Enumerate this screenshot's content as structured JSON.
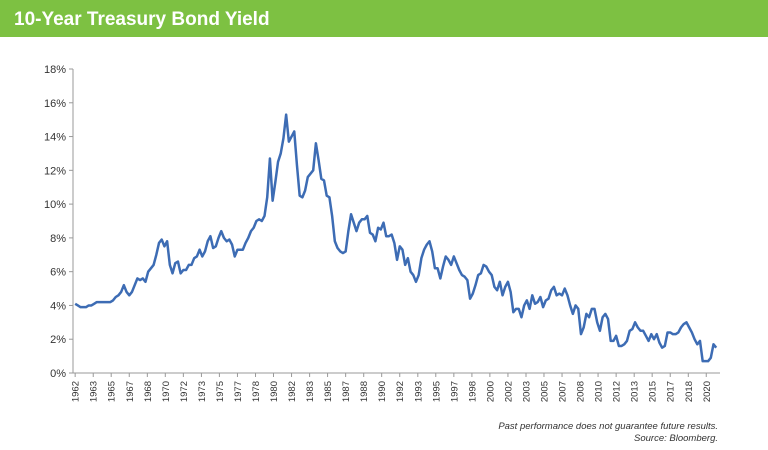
{
  "chart_data": {
    "type": "line",
    "title": "10-Year Treasury Bond Yield",
    "footnotes": [
      "Past performance does not guarantee future results.",
      "Source: Bloomberg."
    ],
    "x": [
      1962,
      1962.25,
      1962.5,
      1962.75,
      1963,
      1963.25,
      1963.5,
      1963.75,
      1964,
      1964.25,
      1964.5,
      1964.75,
      1965,
      1965.25,
      1965.5,
      1965.75,
      1966,
      1966.25,
      1966.5,
      1966.75,
      1967,
      1967.25,
      1967.5,
      1967.75,
      1968,
      1968.25,
      1968.5,
      1968.75,
      1969,
      1969.25,
      1969.5,
      1969.75,
      1970,
      1970.25,
      1970.5,
      1970.75,
      1971,
      1971.25,
      1971.5,
      1971.75,
      1972,
      1972.25,
      1972.5,
      1972.75,
      1973,
      1973.25,
      1973.5,
      1973.75,
      1974,
      1974.25,
      1974.5,
      1974.75,
      1975,
      1975.25,
      1975.5,
      1975.75,
      1976,
      1976.25,
      1976.5,
      1976.75,
      1977,
      1977.25,
      1977.5,
      1977.75,
      1978,
      1978.25,
      1978.5,
      1978.75,
      1979,
      1979.25,
      1979.5,
      1979.75,
      1980,
      1980.25,
      1980.5,
      1980.75,
      1981,
      1981.25,
      1981.5,
      1981.75,
      1982,
      1982.25,
      1982.5,
      1982.75,
      1983,
      1983.25,
      1983.5,
      1983.75,
      1984,
      1984.25,
      1984.5,
      1984.75,
      1985,
      1985.25,
      1985.5,
      1985.75,
      1986,
      1986.25,
      1986.5,
      1986.75,
      1987,
      1987.25,
      1987.5,
      1987.75,
      1988,
      1988.25,
      1988.5,
      1988.75,
      1989,
      1989.25,
      1989.5,
      1989.75,
      1990,
      1990.25,
      1990.5,
      1990.75,
      1991,
      1991.25,
      1991.5,
      1991.75,
      1992,
      1992.25,
      1992.5,
      1992.75,
      1993,
      1993.25,
      1993.5,
      1993.75,
      1994,
      1994.25,
      1994.5,
      1994.75,
      1995,
      1995.25,
      1995.5,
      1995.75,
      1996,
      1996.25,
      1996.5,
      1996.75,
      1997,
      1997.25,
      1997.5,
      1997.75,
      1998,
      1998.25,
      1998.5,
      1998.75,
      1999,
      1999.25,
      1999.5,
      1999.75,
      2000,
      2000.25,
      2000.5,
      2000.75,
      2001,
      2001.25,
      2001.5,
      2001.75,
      2002,
      2002.25,
      2002.5,
      2002.75,
      2003,
      2003.25,
      2003.5,
      2003.75,
      2004,
      2004.25,
      2004.5,
      2004.75,
      2005,
      2005.25,
      2005.5,
      2005.75,
      2006,
      2006.25,
      2006.5,
      2006.75,
      2007,
      2007.25,
      2007.5,
      2007.75,
      2008,
      2008.25,
      2008.5,
      2008.75,
      2009,
      2009.25,
      2009.5,
      2009.75,
      2010,
      2010.25,
      2010.5,
      2010.75,
      2011,
      2011.25,
      2011.5,
      2011.75,
      2012,
      2012.25,
      2012.5,
      2012.75,
      2013,
      2013.25,
      2013.5,
      2013.75,
      2014,
      2014.25,
      2014.5,
      2014.75,
      2015,
      2015.25,
      2015.5,
      2015.75,
      2016,
      2016.25,
      2016.5,
      2016.75,
      2017,
      2017.25,
      2017.5,
      2017.75,
      2018,
      2018.25,
      2018.5,
      2018.75,
      2019,
      2019.25,
      2019.5,
      2019.75,
      2020,
      2020.25,
      2020.5,
      2020.75,
      2021,
      2021.25
    ],
    "series": [
      {
        "name": "10-Year Treasury Yield",
        "color": "#3d6cb4",
        "values": [
          4.1,
          4.0,
          3.9,
          3.9,
          3.9,
          4.0,
          4.0,
          4.1,
          4.2,
          4.2,
          4.2,
          4.2,
          4.2,
          4.2,
          4.3,
          4.5,
          4.6,
          4.8,
          5.2,
          4.8,
          4.6,
          4.8,
          5.2,
          5.6,
          5.5,
          5.6,
          5.4,
          6.0,
          6.2,
          6.4,
          7.0,
          7.7,
          7.9,
          7.5,
          7.8,
          6.4,
          5.9,
          6.5,
          6.6,
          5.9,
          6.1,
          6.1,
          6.4,
          6.4,
          6.8,
          6.9,
          7.3,
          6.9,
          7.2,
          7.8,
          8.1,
          7.4,
          7.5,
          8.0,
          8.4,
          8.0,
          7.8,
          7.9,
          7.6,
          6.9,
          7.3,
          7.3,
          7.3,
          7.7,
          8.0,
          8.4,
          8.6,
          9.0,
          9.1,
          9.0,
          9.3,
          10.4,
          12.7,
          10.2,
          11.3,
          12.5,
          13.0,
          13.9,
          15.3,
          13.7,
          14.0,
          14.3,
          12.3,
          10.5,
          10.4,
          10.8,
          11.6,
          11.8,
          12.0,
          13.6,
          12.6,
          11.5,
          11.4,
          10.5,
          10.4,
          9.3,
          7.8,
          7.4,
          7.2,
          7.1,
          7.2,
          8.4,
          9.4,
          8.9,
          8.4,
          8.9,
          9.1,
          9.1,
          9.3,
          8.3,
          8.2,
          7.8,
          8.6,
          8.5,
          8.9,
          8.1,
          8.1,
          8.2,
          7.7,
          6.7,
          7.5,
          7.3,
          6.4,
          6.8,
          6.0,
          5.8,
          5.4,
          5.8,
          6.8,
          7.3,
          7.6,
          7.8,
          7.2,
          6.2,
          6.2,
          5.6,
          6.3,
          6.9,
          6.7,
          6.4,
          6.9,
          6.5,
          6.1,
          5.8,
          5.7,
          5.5,
          4.4,
          4.7,
          5.2,
          5.8,
          5.9,
          6.4,
          6.3,
          6.0,
          5.8,
          5.1,
          4.9,
          5.4,
          4.6,
          5.1,
          5.4,
          4.8,
          3.6,
          3.8,
          3.8,
          3.3,
          4.0,
          4.3,
          3.8,
          4.6,
          4.1,
          4.2,
          4.5,
          3.9,
          4.3,
          4.4,
          4.9,
          5.1,
          4.6,
          4.7,
          4.6,
          5.0,
          4.6,
          4.0,
          3.5,
          4.0,
          3.8,
          2.3,
          2.7,
          3.5,
          3.3,
          3.8,
          3.8,
          3.0,
          2.5,
          3.3,
          3.5,
          3.2,
          1.9,
          1.9,
          2.2,
          1.6,
          1.6,
          1.7,
          1.9,
          2.5,
          2.6,
          3.0,
          2.7,
          2.5,
          2.5,
          2.2,
          1.9,
          2.3,
          2.0,
          2.3,
          1.8,
          1.5,
          1.6,
          2.4,
          2.4,
          2.3,
          2.3,
          2.4,
          2.7,
          2.9,
          3.0,
          2.7,
          2.4,
          2.0,
          1.7,
          1.9,
          0.7,
          0.7,
          0.7,
          0.9,
          1.7,
          1.5
        ]
      }
    ],
    "xlim": [
      1961.8,
      2021.6
    ],
    "xticks": [
      1962,
      {
        "value": 1963.67,
        "label": "1963"
      },
      {
        "value": 1965.33,
        "label": "1965"
      },
      1967,
      {
        "value": 1968.67,
        "label": "1968"
      },
      {
        "value": 1970.33,
        "label": "1970"
      },
      1972,
      {
        "value": 1973.67,
        "label": "1973"
      },
      {
        "value": 1975.33,
        "label": "1975"
      },
      1977,
      {
        "value": 1978.67,
        "label": "1978"
      },
      {
        "value": 1980.33,
        "label": "1980"
      },
      1982,
      {
        "value": 1983.67,
        "label": "1983"
      },
      {
        "value": 1985.33,
        "label": "1985"
      },
      1987,
      {
        "value": 1988.67,
        "label": "1988"
      },
      {
        "value": 1990.33,
        "label": "1990"
      },
      1992,
      {
        "value": 1993.67,
        "label": "1993"
      },
      {
        "value": 1995.33,
        "label": "1995"
      },
      1997,
      {
        "value": 1998.67,
        "label": "1998"
      },
      {
        "value": 2000.33,
        "label": "2000"
      },
      2002,
      {
        "value": 2003.67,
        "label": "2003"
      },
      {
        "value": 2005.33,
        "label": "2005"
      },
      2007,
      {
        "value": 2008.67,
        "label": "2008"
      },
      {
        "value": 2010.33,
        "label": "2010"
      },
      2012,
      {
        "value": 2013.67,
        "label": "2013"
      },
      {
        "value": 2015.33,
        "label": "2015"
      },
      2017,
      {
        "value": 2018.67,
        "label": "2018"
      },
      {
        "value": 2020.33,
        "label": "2020"
      }
    ],
    "ylim": [
      0,
      18
    ],
    "yticks": [
      {
        "value": 0,
        "label": "0%"
      },
      {
        "value": 2,
        "label": "2%"
      },
      {
        "value": 4,
        "label": "4%"
      },
      {
        "value": 6,
        "label": "6%"
      },
      {
        "value": 8,
        "label": "8%"
      },
      {
        "value": 10,
        "label": "10%"
      },
      {
        "value": 12,
        "label": "12%"
      },
      {
        "value": 14,
        "label": "14%"
      },
      {
        "value": 16,
        "label": "16%"
      },
      {
        "value": 18,
        "label": "18%"
      }
    ],
    "grid": false
  }
}
